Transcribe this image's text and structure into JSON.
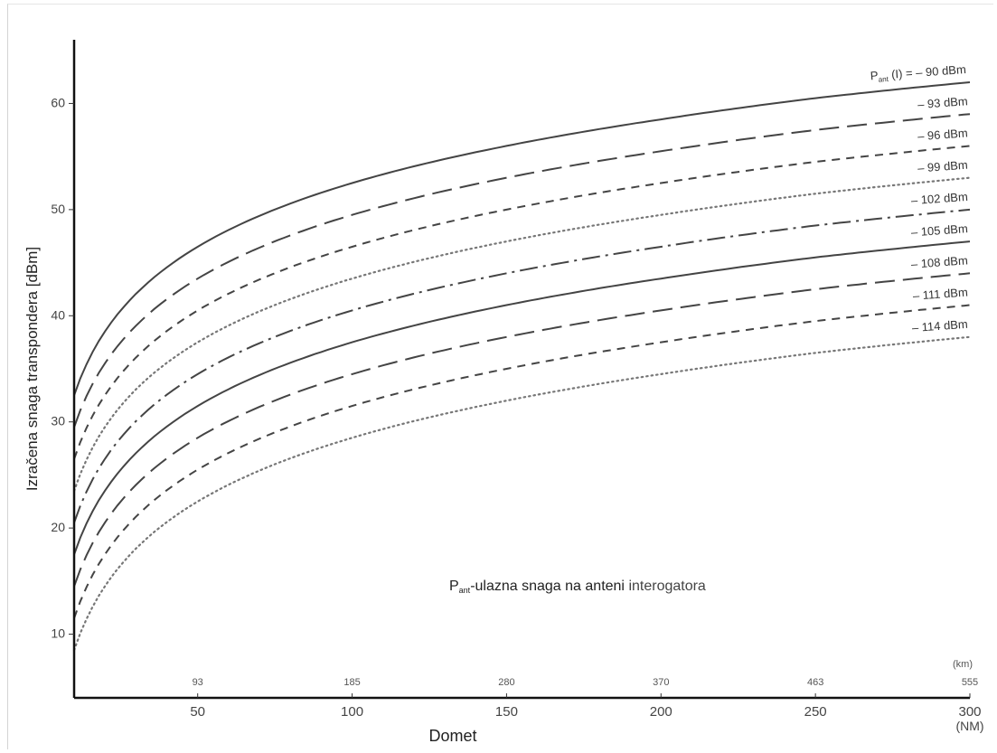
{
  "chart_data": {
    "type": "line",
    "title": "",
    "xlabel": "Domet",
    "ylabel": "Izračena snaga transpondera [dBm]",
    "x_unit": "(NM)",
    "x_secondary_unit": "(km)",
    "xlim": [
      10,
      300
    ],
    "ylim": [
      4,
      66
    ],
    "x_ticks": [
      50,
      100,
      150,
      200,
      250,
      300
    ],
    "x_ticks_km": [
      "93",
      "185",
      "280",
      "370",
      "463",
      "555"
    ],
    "y_ticks": [
      10,
      20,
      30,
      40,
      50,
      60
    ],
    "y_tick_labels": [
      "10",
      "20",
      "30",
      "40",
      "50",
      "60"
    ],
    "grid": false,
    "annotation": {
      "prefix": "P",
      "sub": "ant",
      "text": "-ulazna snaga na anteni ",
      "suffix": "interogatora"
    },
    "series": [
      {
        "name": "P ant (I) = – 90 dBm",
        "style": "solid",
        "points": [
          [
            10,
            32.5
          ],
          [
            50,
            46.5
          ],
          [
            100,
            52.5
          ],
          [
            150,
            56.0
          ],
          [
            200,
            58.5
          ],
          [
            250,
            60.5
          ],
          [
            300,
            62.0
          ]
        ]
      },
      {
        "name": "– 93 dBm",
        "style": "longdash",
        "points": [
          [
            10,
            29.5
          ],
          [
            50,
            43.5
          ],
          [
            100,
            49.5
          ],
          [
            150,
            53.0
          ],
          [
            200,
            55.5
          ],
          [
            250,
            57.5
          ],
          [
            300,
            59.0
          ]
        ]
      },
      {
        "name": "– 96 dBm",
        "style": "shortdash",
        "points": [
          [
            10,
            26.5
          ],
          [
            50,
            40.5
          ],
          [
            100,
            46.5
          ],
          [
            150,
            50.0
          ],
          [
            200,
            52.5
          ],
          [
            250,
            54.5
          ],
          [
            300,
            56.0
          ]
        ]
      },
      {
        "name": "– 99 dBm",
        "style": "dotted",
        "points": [
          [
            10,
            23.5
          ],
          [
            50,
            37.5
          ],
          [
            100,
            43.5
          ],
          [
            150,
            47.0
          ],
          [
            200,
            49.5
          ],
          [
            250,
            51.5
          ],
          [
            300,
            53.0
          ]
        ]
      },
      {
        "name": "– 102 dBm",
        "style": "dashdot",
        "points": [
          [
            10,
            20.5
          ],
          [
            50,
            34.5
          ],
          [
            100,
            40.5
          ],
          [
            150,
            44.0
          ],
          [
            200,
            46.5
          ],
          [
            250,
            48.5
          ],
          [
            300,
            50.0
          ]
        ]
      },
      {
        "name": "– 105 dBm",
        "style": "solid",
        "points": [
          [
            10,
            17.5
          ],
          [
            50,
            31.5
          ],
          [
            100,
            37.5
          ],
          [
            150,
            41.0
          ],
          [
            200,
            43.5
          ],
          [
            250,
            45.5
          ],
          [
            300,
            47.0
          ]
        ]
      },
      {
        "name": "– 108 dBm",
        "style": "longdash",
        "points": [
          [
            10,
            14.5
          ],
          [
            50,
            28.5
          ],
          [
            100,
            34.5
          ],
          [
            150,
            38.0
          ],
          [
            200,
            40.5
          ],
          [
            250,
            42.5
          ],
          [
            300,
            44.0
          ]
        ]
      },
      {
        "name": "– 111 dBm",
        "style": "shortdash",
        "points": [
          [
            10,
            11.5
          ],
          [
            50,
            25.5
          ],
          [
            100,
            31.5
          ],
          [
            150,
            35.0
          ],
          [
            200,
            37.5
          ],
          [
            250,
            39.5
          ],
          [
            300,
            41.0
          ]
        ]
      },
      {
        "name": "– 114 dBm",
        "style": "dotted",
        "points": [
          [
            10,
            8.5
          ],
          [
            50,
            22.5
          ],
          [
            100,
            28.5
          ],
          [
            150,
            32.0
          ],
          [
            200,
            34.5
          ],
          [
            250,
            36.5
          ],
          [
            300,
            38.0
          ]
        ]
      }
    ]
  }
}
